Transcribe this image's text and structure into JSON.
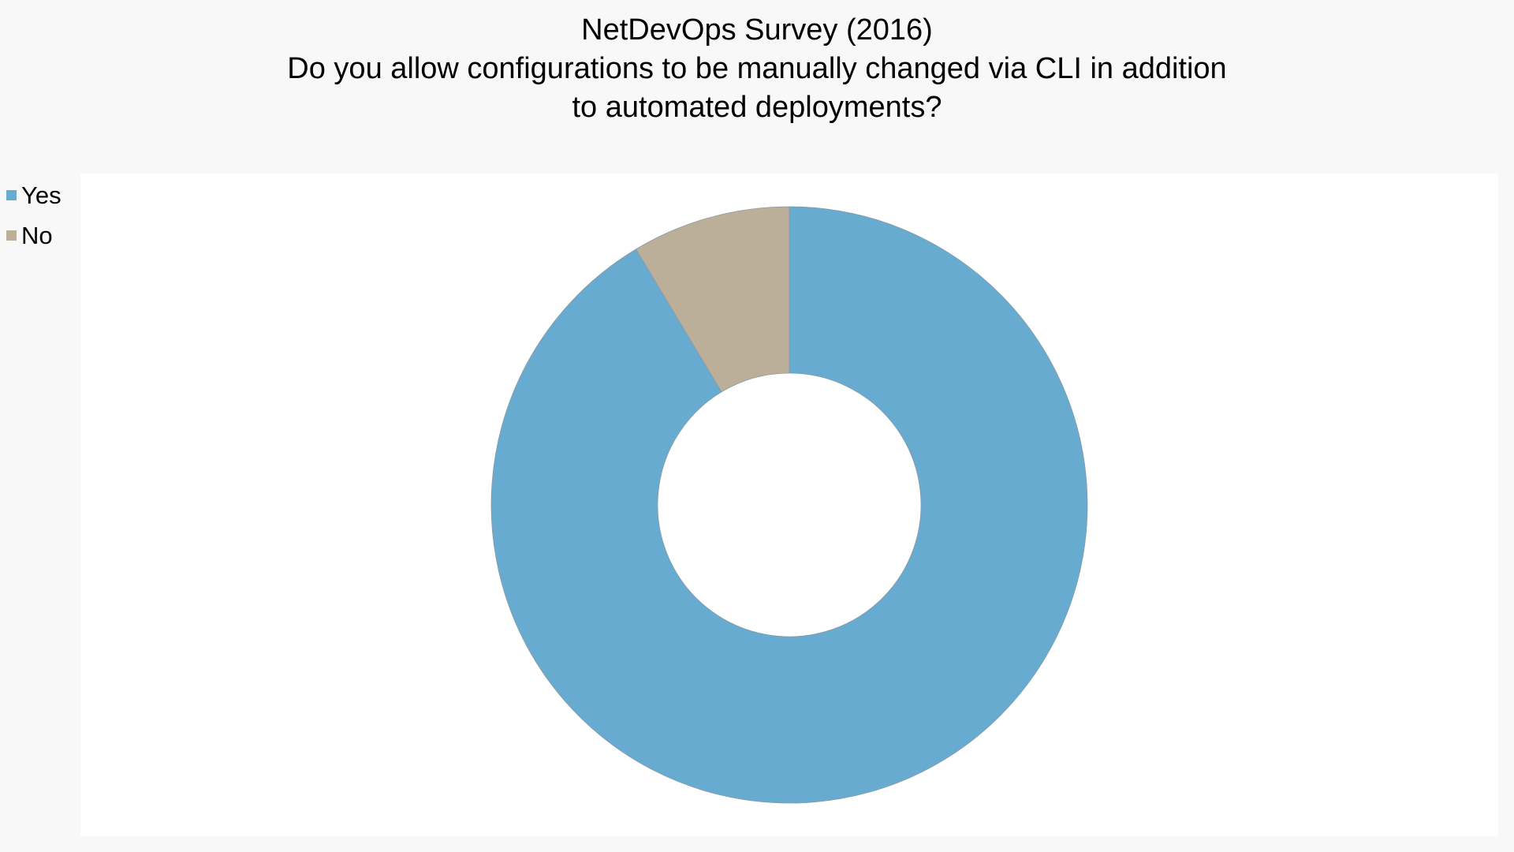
{
  "chart_data": {
    "type": "pie",
    "style": "donut",
    "title_lines": [
      "NetDevOps Survey (2016)",
      "Do you allow configurations to be manually changed via CLI in addition",
      "to automated deployments?"
    ],
    "categories": [
      "Yes",
      "No"
    ],
    "values": [
      91.4,
      8.6
    ],
    "colors": [
      "#67abd0",
      "#bcaf9a"
    ],
    "legend_position": "top-left",
    "start_angle": "12 o'clock, clockwise"
  }
}
